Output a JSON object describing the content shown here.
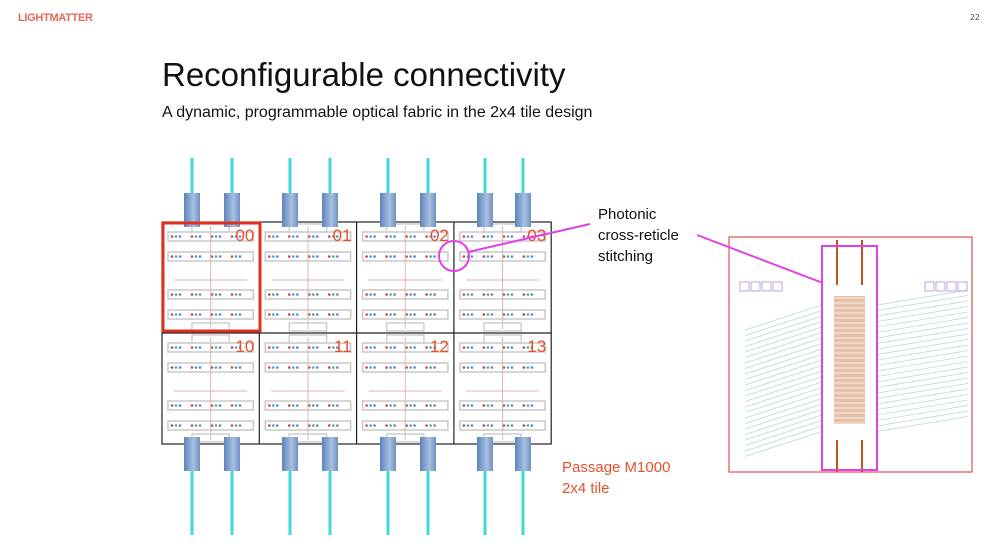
{
  "header": {
    "logo": "LIGHTMATTER",
    "page_number": "22"
  },
  "slide": {
    "title": "Reconfigurable connectivity",
    "subtitle": "A dynamic, programmable optical fabric in the 2x4 tile design",
    "callout_lines": [
      "Photonic",
      "cross-reticle",
      "stitching"
    ],
    "caption_lines": [
      "Passage M1000",
      "2x4 tile"
    ]
  },
  "tiles": {
    "labels": [
      [
        "00",
        "01",
        "02",
        "03"
      ],
      [
        "10",
        "11",
        "12",
        "13"
      ]
    ],
    "highlighted": "00"
  },
  "colors": {
    "accent": "#e8502a",
    "highlight_box": "#e03020",
    "magenta": "#e040e8",
    "fiber": "#40d8d8",
    "connector": "#7a9cc8"
  }
}
